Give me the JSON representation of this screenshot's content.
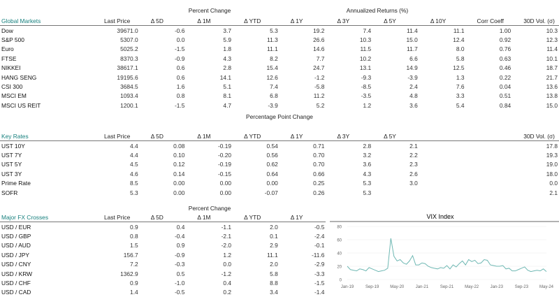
{
  "global_markets": {
    "title": "Global Markets",
    "group_percent": "Percent Change",
    "group_annualized": "Annualized Returns (%)",
    "columns": [
      "Last Price",
      "Δ 5D",
      "Δ 1M",
      "Δ YTD",
      "Δ 1Y",
      "Δ 3Y",
      "Δ 5Y",
      "Δ 10Y",
      "Corr Coeff",
      "30D Vol. (σ)"
    ],
    "rows": [
      [
        "Dow",
        "39671.0",
        "-0.6",
        "3.7",
        "5.3",
        "19.2",
        "7.4",
        "11.4",
        "11.1",
        "1.00",
        "10.3"
      ],
      [
        "S&P 500",
        "5307.0",
        "0.0",
        "5.9",
        "11.3",
        "26.6",
        "10.3",
        "15.0",
        "12.4",
        "0.92",
        "12.3"
      ],
      [
        "Euro",
        "5025.2",
        "-1.5",
        "1.8",
        "11.1",
        "14.6",
        "11.5",
        "11.7",
        "8.0",
        "0.76",
        "11.4"
      ],
      [
        "FTSE",
        "8370.3",
        "-0.9",
        "4.3",
        "8.2",
        "7.7",
        "10.2",
        "6.6",
        "5.8",
        "0.63",
        "10.1"
      ],
      [
        "NIKKEI",
        "38617.1",
        "0.6",
        "2.8",
        "15.4",
        "24.7",
        "13.1",
        "14.9",
        "12.5",
        "0.46",
        "18.7"
      ],
      [
        "HANG SENG",
        "19195.6",
        "0.6",
        "14.1",
        "12.6",
        "-1.2",
        "-9.3",
        "-3.9",
        "1.3",
        "0.22",
        "21.7"
      ],
      [
        "CSI 300",
        "3684.5",
        "1.6",
        "5.1",
        "7.4",
        "-5.8",
        "-8.5",
        "2.4",
        "7.6",
        "0.04",
        "13.6"
      ],
      [
        "MSCI EM",
        "1093.4",
        "0.8",
        "8.1",
        "6.8",
        "11.2",
        "-3.5",
        "4.8",
        "3.3",
        "0.51",
        "13.8"
      ],
      [
        "MSCI US REIT",
        "1200.1",
        "-1.5",
        "4.7",
        "-3.9",
        "5.2",
        "1.2",
        "3.6",
        "5.4",
        "0.84",
        "15.0"
      ]
    ]
  },
  "key_rates": {
    "title": "Key Rates",
    "group_label": "Percentage Point Change",
    "columns": [
      "Last Price",
      "Δ 5D",
      "Δ 1M",
      "Δ YTD",
      "Δ 1Y",
      "Δ 3Y",
      "Δ 5Y",
      "",
      "",
      "30D Vol. (σ)"
    ],
    "rows": [
      [
        "UST 10Y",
        "4.4",
        "0.08",
        "-0.19",
        "0.54",
        "0.71",
        "2.8",
        "2.1",
        "",
        "",
        "17.8"
      ],
      [
        "UST 7Y",
        "4.4",
        "0.10",
        "-0.20",
        "0.56",
        "0.70",
        "3.2",
        "2.2",
        "",
        "",
        "19.3"
      ],
      [
        "UST 5Y",
        "4.5",
        "0.12",
        "-0.19",
        "0.62",
        "0.70",
        "3.6",
        "2.3",
        "",
        "",
        "19.0"
      ],
      [
        "UST 3Y",
        "4.6",
        "0.14",
        "-0.15",
        "0.64",
        "0.66",
        "4.3",
        "2.6",
        "",
        "",
        "18.0"
      ],
      [
        "Prime Rate",
        "8.5",
        "0.00",
        "0.00",
        "0.00",
        "0.25",
        "5.3",
        "3.0",
        "",
        "",
        "0.0"
      ],
      [
        "SOFR",
        "5.3",
        "0.00",
        "0.00",
        "-0.07",
        "0.26",
        "5.3",
        "",
        "",
        "",
        "2.1"
      ]
    ]
  },
  "fx": {
    "title": "Major FX Crosses",
    "group_label": "Percent Change",
    "columns": [
      "Last Price",
      "Δ 5D",
      "Δ 1M",
      "Δ YTD",
      "Δ 1Y"
    ],
    "rows": [
      [
        "USD / EUR",
        "0.9",
        "0.4",
        "-1.1",
        "2.0",
        "-0.5"
      ],
      [
        "USD / GBP",
        "0.8",
        "-0.4",
        "-2.1",
        "0.1",
        "-2.4"
      ],
      [
        "USD / AUD",
        "1.5",
        "0.9",
        "-2.0",
        "2.9",
        "-0.1"
      ],
      [
        "USD / JPY",
        "156.7",
        "-0.9",
        "1.2",
        "11.1",
        "-11.6"
      ],
      [
        "USD / CNY",
        "7.2",
        "-0.3",
        "0.0",
        "2.0",
        "-2.9"
      ],
      [
        "USD / KRW",
        "1362.9",
        "0.5",
        "-1.2",
        "5.8",
        "-3.3"
      ],
      [
        "USD / CHF",
        "0.9",
        "-1.0",
        "0.4",
        "8.8",
        "-1.5"
      ],
      [
        "USD / CAD",
        "1.4",
        "-0.5",
        "0.2",
        "3.4",
        "-1.4"
      ]
    ]
  },
  "colors": {
    "accent": "#17807e",
    "line": "#6fb8b3",
    "rule": "#777777"
  },
  "chart_data": {
    "type": "line",
    "title": "VIX Index",
    "ylim": [
      0,
      80
    ],
    "yticks": [
      0,
      20,
      40,
      60,
      80
    ],
    "xtick_labels": [
      "Jan-19",
      "Sep-19",
      "May-20",
      "Jan-21",
      "Sep-21",
      "May-22",
      "Jan-23",
      "Sep-23",
      "May-24"
    ],
    "grid": true,
    "x": [
      "2019-01",
      "2019-02",
      "2019-03",
      "2019-04",
      "2019-05",
      "2019-06",
      "2019-07",
      "2019-08",
      "2019-09",
      "2019-10",
      "2019-11",
      "2019-12",
      "2020-01",
      "2020-02",
      "2020-03",
      "2020-04",
      "2020-05",
      "2020-06",
      "2020-07",
      "2020-08",
      "2020-09",
      "2020-10",
      "2020-11",
      "2020-12",
      "2021-01",
      "2021-02",
      "2021-03",
      "2021-04",
      "2021-05",
      "2021-06",
      "2021-07",
      "2021-08",
      "2021-09",
      "2021-10",
      "2021-11",
      "2021-12",
      "2022-01",
      "2022-02",
      "2022-03",
      "2022-04",
      "2022-05",
      "2022-06",
      "2022-07",
      "2022-08",
      "2022-09",
      "2022-10",
      "2022-11",
      "2022-12",
      "2023-01",
      "2023-02",
      "2023-03",
      "2023-04",
      "2023-05",
      "2023-06",
      "2023-07",
      "2023-08",
      "2023-09",
      "2023-10",
      "2023-11",
      "2023-12",
      "2024-01",
      "2024-02",
      "2024-03",
      "2024-04",
      "2024-05"
    ],
    "values": [
      20,
      15,
      14,
      13,
      16,
      15,
      13,
      18,
      16,
      14,
      12,
      13,
      14,
      17,
      62,
      35,
      28,
      30,
      25,
      23,
      28,
      36,
      22,
      22,
      25,
      24,
      20,
      18,
      17,
      16,
      18,
      17,
      21,
      16,
      22,
      19,
      24,
      28,
      22,
      30,
      27,
      29,
      24,
      25,
      30,
      29,
      22,
      21,
      20,
      20,
      21,
      16,
      17,
      13,
      13,
      15,
      17,
      19,
      14,
      12,
      13,
      14,
      13,
      16,
      12
    ]
  }
}
